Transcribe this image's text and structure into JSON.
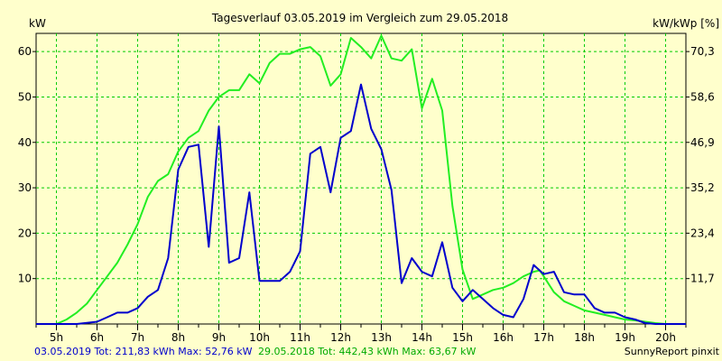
{
  "chart_data": {
    "type": "line",
    "title": "Tagesverlauf 03.05.2019 im Vergleich zum 29.05.2018",
    "ylabel_left": "kW",
    "ylabel_right": "kW/kWp [%]",
    "xlim": [
      4.5,
      20.5
    ],
    "ylim": [
      0,
      64
    ],
    "x_ticks": [
      {
        "x": 5,
        "label": "5h"
      },
      {
        "x": 6,
        "label": "6h"
      },
      {
        "x": 7,
        "label": "7h"
      },
      {
        "x": 8,
        "label": "8h"
      },
      {
        "x": 9,
        "label": "9h"
      },
      {
        "x": 10,
        "label": "10h"
      },
      {
        "x": 11,
        "label": "11h"
      },
      {
        "x": 12,
        "label": "12h"
      },
      {
        "x": 13,
        "label": "13h"
      },
      {
        "x": 14,
        "label": "14h"
      },
      {
        "x": 15,
        "label": "15h"
      },
      {
        "x": 16,
        "label": "16h"
      },
      {
        "x": 17,
        "label": "17h"
      },
      {
        "x": 18,
        "label": "18h"
      },
      {
        "x": 19,
        "label": "19h"
      },
      {
        "x": 20,
        "label": "20h"
      }
    ],
    "y_ticks_left": [
      {
        "y": 10,
        "label": "10"
      },
      {
        "y": 20,
        "label": "20"
      },
      {
        "y": 30,
        "label": "30"
      },
      {
        "y": 40,
        "label": "40"
      },
      {
        "y": 50,
        "label": "50"
      },
      {
        "y": 60,
        "label": "60"
      }
    ],
    "y_ticks_right": [
      {
        "y": 10,
        "label": "11,7"
      },
      {
        "y": 20,
        "label": "23,4"
      },
      {
        "y": 30,
        "label": "35,2"
      },
      {
        "y": 40,
        "label": "46,9"
      },
      {
        "y": 50,
        "label": "58,6"
      },
      {
        "y": 60,
        "label": "70,3"
      }
    ],
    "grid": true,
    "legend_position": "bottom",
    "series": [
      {
        "name": "29.05.2018",
        "color": "#22ee22",
        "points": [
          [
            4.5,
            0
          ],
          [
            5,
            0
          ],
          [
            5.25,
            1
          ],
          [
            5.5,
            2.5
          ],
          [
            5.75,
            4.5
          ],
          [
            6,
            7.5
          ],
          [
            6.25,
            10.5
          ],
          [
            6.5,
            13.5
          ],
          [
            6.75,
            17.5
          ],
          [
            7,
            22
          ],
          [
            7.25,
            28
          ],
          [
            7.5,
            31.5
          ],
          [
            7.75,
            33
          ],
          [
            8,
            38
          ],
          [
            8.25,
            41
          ],
          [
            8.5,
            42.5
          ],
          [
            8.75,
            47
          ],
          [
            9,
            50
          ],
          [
            9.25,
            51.5
          ],
          [
            9.5,
            51.5
          ],
          [
            9.75,
            55
          ],
          [
            10,
            53
          ],
          [
            10.25,
            57.5
          ],
          [
            10.5,
            59.5
          ],
          [
            10.75,
            59.5
          ],
          [
            11,
            60.5
          ],
          [
            11.25,
            61
          ],
          [
            11.5,
            59
          ],
          [
            11.75,
            52.5
          ],
          [
            12,
            55
          ],
          [
            12.25,
            63
          ],
          [
            12.5,
            61
          ],
          [
            12.75,
            58.5
          ],
          [
            13,
            63.5
          ],
          [
            13.25,
            58.5
          ],
          [
            13.5,
            58
          ],
          [
            13.75,
            60.5
          ],
          [
            14,
            47.5
          ],
          [
            14.25,
            54
          ],
          [
            14.5,
            47
          ],
          [
            14.75,
            26
          ],
          [
            15,
            12
          ],
          [
            15.25,
            5.5
          ],
          [
            15.5,
            6.5
          ],
          [
            15.75,
            7.5
          ],
          [
            16,
            8
          ],
          [
            16.25,
            9
          ],
          [
            16.5,
            10.5
          ],
          [
            16.75,
            11.5
          ],
          [
            16.9,
            11.8
          ],
          [
            17,
            10.5
          ],
          [
            17.25,
            7
          ],
          [
            17.5,
            5
          ],
          [
            17.75,
            4
          ],
          [
            18,
            3
          ],
          [
            18.25,
            2.5
          ],
          [
            18.5,
            2
          ],
          [
            18.75,
            1.5
          ],
          [
            19,
            1
          ],
          [
            19.25,
            0.8
          ],
          [
            19.5,
            0.5
          ],
          [
            19.75,
            0.2
          ],
          [
            20,
            0
          ],
          [
            20.5,
            0
          ]
        ]
      },
      {
        "name": "03.05.2019",
        "color": "#0000cc",
        "points": [
          [
            4.5,
            0
          ],
          [
            5,
            0
          ],
          [
            5.5,
            0
          ],
          [
            6,
            0.5
          ],
          [
            6.25,
            1.5
          ],
          [
            6.5,
            2.5
          ],
          [
            6.75,
            2.5
          ],
          [
            7,
            3.5
          ],
          [
            7.25,
            6
          ],
          [
            7.5,
            7.5
          ],
          [
            7.75,
            14.5
          ],
          [
            8,
            34
          ],
          [
            8.25,
            39
          ],
          [
            8.5,
            39.5
          ],
          [
            8.75,
            17
          ],
          [
            9,
            43.5
          ],
          [
            9.25,
            13.5
          ],
          [
            9.5,
            14.5
          ],
          [
            9.75,
            29
          ],
          [
            10,
            9.5
          ],
          [
            10.25,
            9.5
          ],
          [
            10.5,
            9.5
          ],
          [
            10.75,
            11.5
          ],
          [
            11,
            16
          ],
          [
            11.25,
            37.5
          ],
          [
            11.5,
            39
          ],
          [
            11.75,
            29
          ],
          [
            12,
            41
          ],
          [
            12.25,
            42.5
          ],
          [
            12.5,
            52.76
          ],
          [
            12.75,
            43
          ],
          [
            13,
            38.5
          ],
          [
            13.25,
            29.5
          ],
          [
            13.5,
            9
          ],
          [
            13.75,
            14.5
          ],
          [
            14,
            11.5
          ],
          [
            14.25,
            10.5
          ],
          [
            14.5,
            18
          ],
          [
            14.75,
            8
          ],
          [
            15,
            5
          ],
          [
            15.25,
            7.5
          ],
          [
            15.5,
            5.5
          ],
          [
            15.75,
            3.5
          ],
          [
            16,
            2
          ],
          [
            16.25,
            1.5
          ],
          [
            16.5,
            5.5
          ],
          [
            16.75,
            13
          ],
          [
            17,
            11
          ],
          [
            17.25,
            11.5
          ],
          [
            17.5,
            7
          ],
          [
            17.75,
            6.5
          ],
          [
            18,
            6.5
          ],
          [
            18.25,
            3.5
          ],
          [
            18.5,
            2.5
          ],
          [
            18.75,
            2.5
          ],
          [
            19,
            1.5
          ],
          [
            19.25,
            1
          ],
          [
            19.5,
            0.2
          ],
          [
            19.75,
            0
          ],
          [
            20,
            0
          ],
          [
            20.5,
            0
          ]
        ]
      }
    ],
    "footer": {
      "blue": "03.05.2019 Tot: 211,83 kWh Max: 52,76 kW",
      "green": "29.05.2018 Tot: 442,43 kWh Max: 63,67 kW",
      "brand": "SunnyReport pinxit"
    }
  }
}
